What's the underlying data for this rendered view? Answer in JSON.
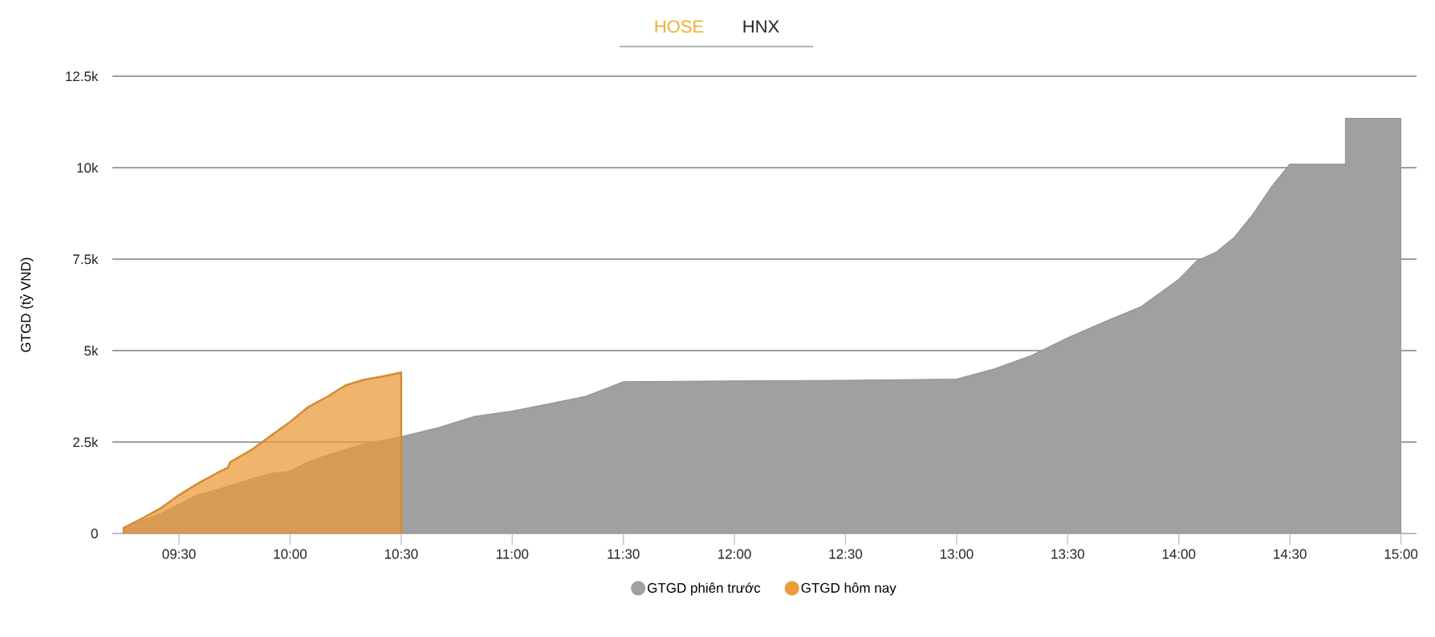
{
  "chart_data": {
    "type": "area",
    "annotations": [
      "HOSE",
      "HNX"
    ],
    "ylabel": "GTGD (tỷ VND)",
    "xlim": [
      9.2,
      15.07
    ],
    "xticks": [
      {
        "value": 9.5,
        "label": "09:30"
      },
      {
        "value": 10,
        "label": "10:00"
      },
      {
        "value": 10.5,
        "label": "10:30"
      },
      {
        "value": 11,
        "label": "11:00"
      },
      {
        "value": 11.5,
        "label": "11:30"
      },
      {
        "value": 12,
        "label": "12:00"
      },
      {
        "value": 12.5,
        "label": "12:30"
      },
      {
        "value": 13,
        "label": "13:00"
      },
      {
        "value": 13.5,
        "label": "13:30"
      },
      {
        "value": 14,
        "label": "14:00"
      },
      {
        "value": 14.5,
        "label": "14:30"
      },
      {
        "value": 15,
        "label": "15:00"
      }
    ],
    "ylim": [
      0,
      12500
    ],
    "yticks": [
      0,
      {
        "value": 2500,
        "label": "2.5k"
      },
      {
        "value": 5000,
        "label": "5k"
      },
      {
        "value": 7500,
        "label": "7.5k"
      },
      {
        "value": 10000,
        "label": "10k"
      },
      {
        "value": 12500,
        "label": "12.5k"
      }
    ],
    "grid": "y",
    "legend": "bottom",
    "series": [
      {
        "name": "GTGD phiên trước",
        "color": "#9fa0a2",
        "x": [
          9.25,
          9.33,
          9.42,
          9.5,
          9.58,
          9.67,
          9.75,
          9.83,
          9.92,
          10.0,
          10.08,
          10.17,
          10.25,
          10.33,
          10.42,
          10.5,
          10.67,
          10.83,
          11.0,
          11.17,
          11.33,
          11.5,
          12.0,
          12.5,
          13.0,
          13.17,
          13.33,
          13.5,
          13.67,
          13.83,
          14.0,
          14.08,
          14.17,
          14.25,
          14.33,
          14.42,
          14.5,
          14.75,
          14.75,
          15.0
        ],
        "values": [
          100,
          350,
          550,
          800,
          1050,
          1200,
          1350,
          1500,
          1650,
          1700,
          1950,
          2150,
          2300,
          2450,
          2550,
          2650,
          2900,
          3200,
          3350,
          3550,
          3750,
          4150,
          4170,
          4190,
          4220,
          4500,
          4850,
          5350,
          5800,
          6200,
          6950,
          7450,
          7700,
          8100,
          8700,
          9500,
          10100,
          10100,
          11350,
          11350
        ]
      },
      {
        "name": "GTGD hôm nay",
        "color": "#eb9b3b",
        "x": [
          9.25,
          9.33,
          9.42,
          9.5,
          9.58,
          9.67,
          9.72,
          9.73,
          9.83,
          9.92,
          10.0,
          10.08,
          10.17,
          10.25,
          10.33,
          10.42,
          10.5
        ],
        "values": [
          150,
          400,
          700,
          1050,
          1350,
          1650,
          1800,
          1950,
          2300,
          2700,
          3050,
          3450,
          3750,
          4050,
          4200,
          4300,
          4400
        ]
      }
    ]
  }
}
